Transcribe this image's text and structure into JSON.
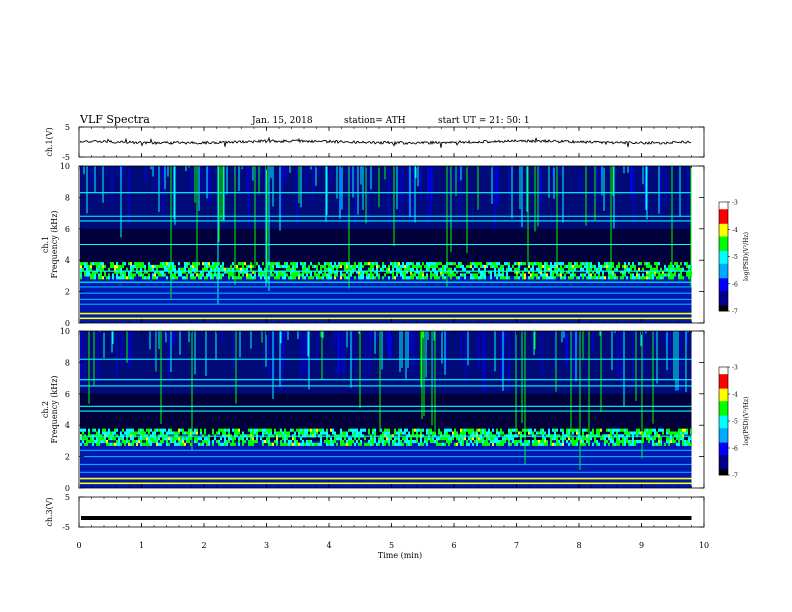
{
  "header": {
    "title": "VLF  Spectra",
    "date": "Jan. 15, 2018",
    "station": "station= ATH",
    "start_ut": "start  UT  =    21: 50: 1"
  },
  "chart_data": {
    "type": "heatmap",
    "time_axis": {
      "label": "Time  (min)",
      "range": [
        0,
        10
      ],
      "ticks": [
        "0",
        "1",
        "2",
        "3",
        "4",
        "5",
        "6",
        "7",
        "8",
        "9",
        "10"
      ]
    },
    "panels": [
      {
        "type": "line",
        "channel": "ch.1",
        "ylabel": "ch.1(V)",
        "ylim": [
          -5,
          5
        ],
        "yticks": [
          "5",
          "-5"
        ],
        "baseline_value": 0,
        "end_time": 9.8
      },
      {
        "type": "heatmap",
        "channel": "ch.1",
        "ylabel": "ch.1\nFrequency  (kHz)",
        "ylabel_lines": [
          "ch.1",
          "Frequency  (kHz)"
        ],
        "ylim": [
          0,
          10
        ],
        "yticks": [
          "0",
          "2",
          "4",
          "6",
          "8",
          "10"
        ],
        "z_units": "log(PSD)(V²/Hz)",
        "zlim": [
          -7,
          -3
        ],
        "colorbar_ticks": [
          "-3",
          "-4",
          "-5",
          "-6",
          "-7"
        ],
        "colormap": [
          "#000000",
          "#00008b",
          "#0000ff",
          "#00aaff",
          "#00ffff",
          "#00ff00",
          "#ffff00",
          "#ff0000",
          "#ffffff"
        ],
        "horizontal_lines_khz": [
          0.3,
          0.6,
          1.2,
          1.5,
          1.9,
          2.3,
          2.6,
          3.3,
          5.0,
          6.5,
          6.8,
          8.3
        ],
        "noise_band_khz": [
          2.8,
          3.8
        ],
        "end_time": 9.8
      },
      {
        "type": "heatmap",
        "channel": "ch.2",
        "ylabel": "ch.2\nFrequency  (kHz)",
        "ylabel_lines": [
          "ch.2",
          "Frequency  (kHz)"
        ],
        "ylim": [
          0,
          10
        ],
        "yticks": [
          "0",
          "2",
          "4",
          "6",
          "8",
          "10"
        ],
        "z_units": "log(PSD)(V²/Hz)",
        "zlim": [
          -7,
          -3
        ],
        "colorbar_ticks": [
          "-3",
          "-4",
          "-5",
          "-6",
          "-7"
        ],
        "colormap": [
          "#000000",
          "#00008b",
          "#0000ff",
          "#00aaff",
          "#00ffff",
          "#00ff00",
          "#ffff00",
          "#ff0000",
          "#ffffff"
        ],
        "horizontal_lines_khz": [
          0.3,
          0.6,
          1.0,
          1.5,
          2.0,
          2.4,
          3.3,
          4.9,
          5.2,
          6.5,
          6.9,
          8.2
        ],
        "noise_band_khz": [
          2.7,
          3.7
        ],
        "end_time": 9.8
      },
      {
        "type": "line",
        "channel": "ch.3",
        "ylabel": "ch.3(V)",
        "ylim": [
          -5,
          5
        ],
        "yticks": [
          "5",
          "-5"
        ],
        "baseline_value": -2,
        "end_time": 9.8
      }
    ]
  }
}
